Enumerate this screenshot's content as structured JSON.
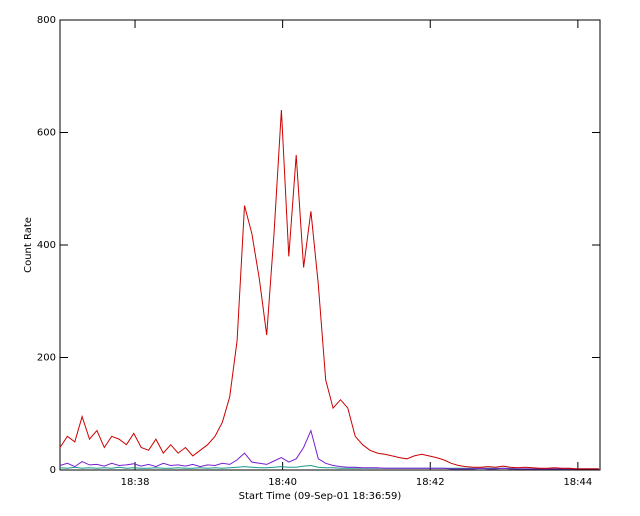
{
  "chart_data": {
    "type": "line",
    "y_label": "Count Rate",
    "x_label": "Start Time (09-Sep-01 18:36:59)",
    "x": [
      0,
      6,
      12,
      18,
      24,
      30,
      36,
      42,
      48,
      54,
      60,
      66,
      72,
      78,
      84,
      90,
      96,
      102,
      108,
      114,
      120,
      126,
      132,
      138,
      144,
      150,
      156,
      162,
      168,
      174,
      180,
      186,
      192,
      198,
      204,
      210,
      216,
      222,
      228,
      234,
      240,
      246,
      252,
      258,
      264,
      270,
      276,
      282,
      288,
      294,
      300,
      306,
      312,
      318,
      324,
      330,
      336,
      342,
      348,
      354,
      360,
      366,
      372,
      378,
      384,
      390,
      396,
      402,
      408,
      414,
      420,
      426,
      432,
      438
    ],
    "series": [
      {
        "color": "#cc0000",
        "values": [
          40,
          60,
          50,
          95,
          55,
          70,
          40,
          60,
          55,
          45,
          65,
          40,
          35,
          55,
          30,
          45,
          30,
          40,
          25,
          35,
          45,
          60,
          85,
          130,
          230,
          470,
          420,
          340,
          240,
          420,
          640,
          380,
          560,
          360,
          460,
          330,
          160,
          110,
          125,
          110,
          60,
          45,
          35,
          30,
          28,
          25,
          22,
          20,
          25,
          28,
          25,
          22,
          18,
          12,
          8,
          6,
          5,
          5,
          6,
          5,
          7,
          5,
          4,
          5,
          4,
          3,
          3,
          4,
          3,
          3,
          2,
          2,
          2,
          2
        ]
      },
      {
        "color": "#7a1fd0",
        "values": [
          8,
          12,
          6,
          15,
          9,
          10,
          7,
          12,
          8,
          9,
          11,
          7,
          10,
          6,
          12,
          8,
          9,
          7,
          10,
          6,
          9,
          8,
          12,
          10,
          18,
          30,
          14,
          12,
          10,
          16,
          22,
          14,
          20,
          40,
          70,
          20,
          12,
          8,
          6,
          5,
          5,
          4,
          4,
          4,
          3,
          3,
          3,
          3,
          3,
          3,
          3,
          3,
          3,
          2,
          2,
          2,
          2,
          3,
          2,
          2,
          3,
          2,
          2,
          2,
          2,
          2,
          2,
          2,
          2,
          2,
          2,
          2,
          2,
          2
        ]
      },
      {
        "color": "#1a9a8a",
        "values": [
          4,
          3,
          5,
          3,
          4,
          3,
          4,
          3,
          5,
          3,
          4,
          3,
          3,
          4,
          3,
          3,
          4,
          3,
          3,
          4,
          3,
          4,
          3,
          4,
          5,
          6,
          5,
          4,
          4,
          5,
          6,
          5,
          5,
          7,
          8,
          5,
          4,
          4,
          3,
          3,
          3,
          3,
          3,
          3,
          3,
          3,
          3,
          3,
          3,
          3,
          3,
          3,
          3,
          3,
          3,
          3,
          3,
          3,
          3,
          3,
          3,
          3,
          2,
          2,
          2,
          2,
          2,
          2,
          2,
          2,
          2,
          2,
          2,
          2
        ]
      }
    ],
    "xlim": [
      0,
      439
    ],
    "ylim": [
      0,
      800
    ],
    "yticks": [
      0,
      200,
      400,
      600,
      800
    ],
    "xticks": [
      {
        "value": 61,
        "label": "18:38"
      },
      {
        "value": 181,
        "label": "18:40"
      },
      {
        "value": 301,
        "label": "18:42"
      },
      {
        "value": 421,
        "label": "18:44"
      }
    ]
  }
}
